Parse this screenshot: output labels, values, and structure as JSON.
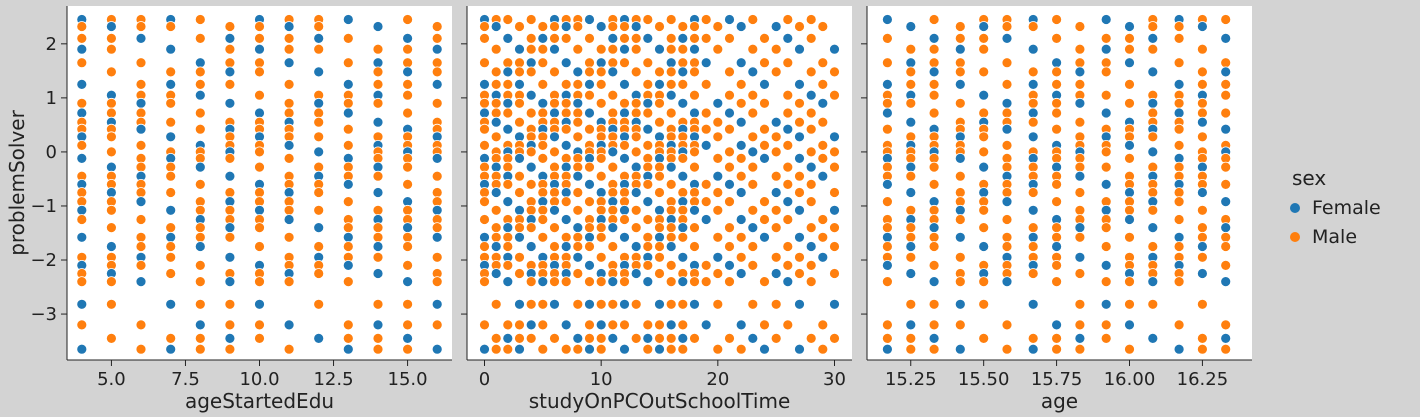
{
  "chart_data": {
    "type": "scatter",
    "ylabel": "problemSolver",
    "ylim": [
      -3.85,
      2.7
    ],
    "yticks": [
      2,
      1,
      0,
      -1,
      -2,
      -3
    ],
    "ytick_labels": [
      "2",
      "1",
      "0",
      "−1",
      "−2",
      "−3"
    ],
    "y_levels": [
      2.45,
      2.32,
      2.1,
      1.9,
      1.65,
      1.48,
      1.25,
      1.05,
      0.9,
      0.72,
      0.55,
      0.42,
      0.28,
      0.12,
      0.0,
      -0.12,
      -0.28,
      -0.45,
      -0.6,
      -0.75,
      -0.92,
      -1.08,
      -1.25,
      -1.4,
      -1.58,
      -1.75,
      -1.95,
      -2.1,
      -2.25,
      -2.4,
      -2.82,
      -3.2,
      -3.45,
      -3.65
    ],
    "legend": {
      "title": "sex",
      "position": "center-right",
      "entries": [
        {
          "label": "Female",
          "color": "#1f77b4"
        },
        {
          "label": "Male",
          "color": "#ff7f0e"
        }
      ]
    },
    "panels": [
      {
        "xlabel": "ageStartedEdu",
        "xlim": [
          3.5,
          16.5
        ],
        "xticks": [
          5,
          7.5,
          10,
          12.5,
          15
        ],
        "xtick_labels": [
          "5.0",
          "7.5",
          "10.0",
          "12.5",
          "15.0"
        ],
        "x_values": [
          4,
          5,
          6,
          7,
          8,
          9,
          10,
          11,
          12,
          13,
          14,
          15,
          16
        ]
      },
      {
        "xlabel": "studyOnPCOutSchoolTime",
        "xlim": [
          -1.5,
          31.5
        ],
        "xticks": [
          0,
          10,
          20,
          30
        ],
        "xtick_labels": [
          "0",
          "10",
          "20",
          "30"
        ],
        "x_values": [
          0,
          1,
          2,
          3,
          4,
          5,
          6,
          7,
          8,
          9,
          10,
          11,
          12,
          13,
          14,
          15,
          16,
          17,
          18,
          19,
          20,
          21,
          22,
          23,
          24,
          25,
          26,
          27,
          28,
          29,
          30
        ]
      },
      {
        "xlabel": "age",
        "xlim": [
          15.1,
          16.42
        ],
        "xticks": [
          15.25,
          15.5,
          15.75,
          16.0,
          16.25
        ],
        "xtick_labels": [
          "15.25",
          "15.50",
          "15.75",
          "16.00",
          "16.25"
        ],
        "x_values": [
          15.17,
          15.25,
          15.33,
          15.42,
          15.5,
          15.58,
          15.67,
          15.75,
          15.83,
          15.92,
          16.0,
          16.08,
          16.17,
          16.25,
          16.33
        ]
      }
    ]
  }
}
